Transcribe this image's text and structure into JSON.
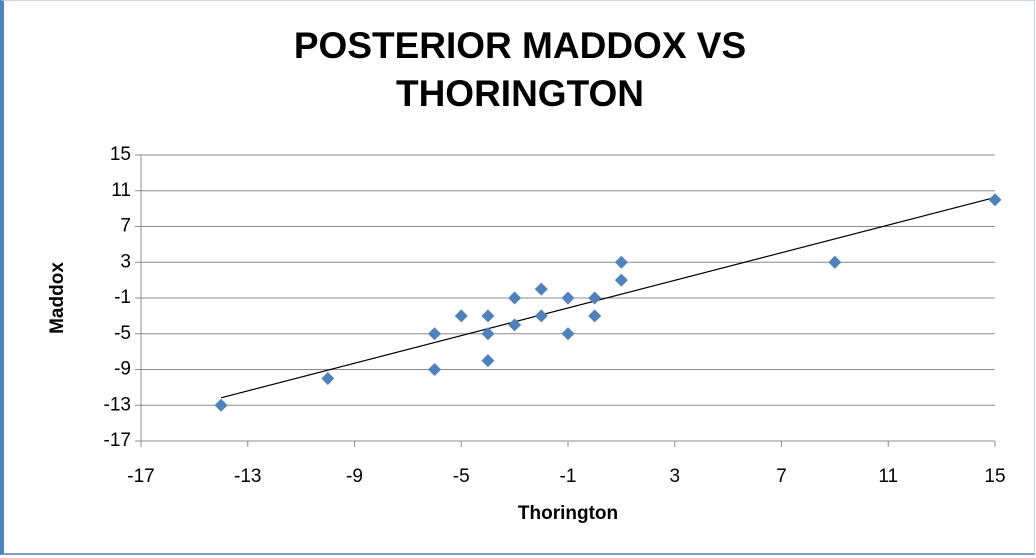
{
  "chart_data": {
    "type": "scatter",
    "title": "POSTERIOR MADDOX VS THORINGTON",
    "x_label": "Thorington",
    "y_label": "Maddox",
    "x": [
      -14,
      -10,
      -6,
      -6,
      -5,
      -4,
      -4,
      -4,
      -3,
      -3,
      -2,
      -2,
      -1,
      -1,
      0,
      0,
      1,
      1,
      9,
      15
    ],
    "y": [
      -13,
      -10,
      -5,
      -9,
      -3,
      -3,
      -5,
      -8,
      -1,
      -4,
      0,
      -3,
      -1,
      -5,
      -1,
      -3,
      1,
      3,
      3,
      10
    ],
    "color": "#4f81bd",
    "trendline": true,
    "grid": true,
    "xlim": [
      -17,
      15
    ],
    "xticks": [
      -17,
      -13,
      -9,
      -5,
      -1,
      3,
      7,
      11,
      15
    ],
    "ylim": [
      -17,
      15
    ],
    "yticks": [
      -17,
      -13,
      -9,
      -5,
      -1,
      3,
      7,
      11,
      15
    ]
  }
}
